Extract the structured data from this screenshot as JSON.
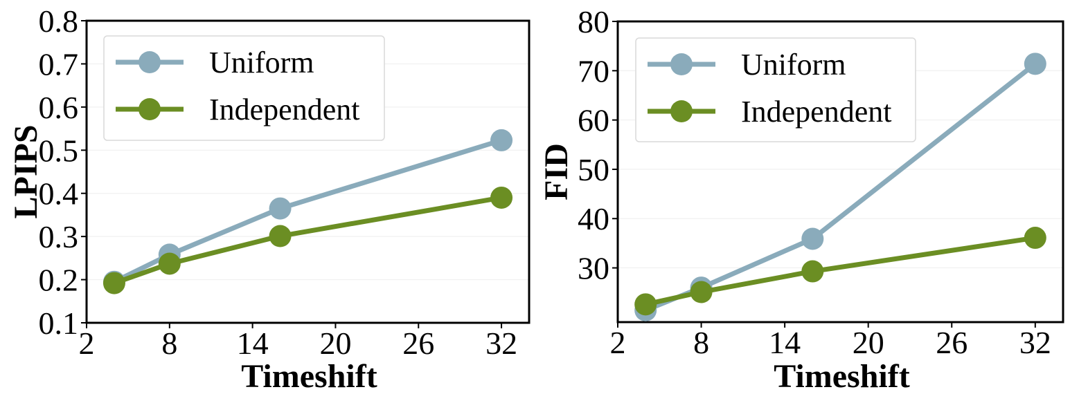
{
  "chart_data": [
    {
      "type": "line",
      "xlabel": "Timeshift",
      "ylabel": "LPIPS",
      "xlim": [
        2,
        34
      ],
      "ylim": [
        0.1,
        0.8
      ],
      "xticks": [
        "2",
        "8",
        "14",
        "20",
        "26",
        "32"
      ],
      "yticks": [
        "0.1",
        "0.2",
        "0.3",
        "0.4",
        "0.5",
        "0.6",
        "0.7",
        "0.8"
      ],
      "x": [
        4,
        8,
        16,
        32
      ],
      "series": [
        {
          "name": "Uniform",
          "color": "#8aabbb",
          "values": [
            0.195,
            0.258,
            0.365,
            0.523
          ]
        },
        {
          "name": "Independent",
          "color": "#6b8e23",
          "values": [
            0.192,
            0.237,
            0.301,
            0.39
          ]
        }
      ],
      "legend_position": "top-left",
      "grid": true
    },
    {
      "type": "line",
      "xlabel": "Timeshift",
      "ylabel": "FID",
      "xlim": [
        2,
        34
      ],
      "ylim": [
        19,
        80
      ],
      "xticks": [
        "2",
        "8",
        "14",
        "20",
        "26",
        "32"
      ],
      "yticks": [
        "30",
        "40",
        "50",
        "60",
        "70",
        "80"
      ],
      "x": [
        4,
        8,
        16,
        32
      ],
      "series": [
        {
          "name": "Uniform",
          "color": "#8aabbb",
          "values": [
            21.4,
            26.0,
            35.9,
            71.4
          ]
        },
        {
          "name": "Independent",
          "color": "#6b8e23",
          "values": [
            22.6,
            25.1,
            29.3,
            36.1
          ]
        }
      ],
      "legend_position": "top-left",
      "grid": true
    }
  ]
}
